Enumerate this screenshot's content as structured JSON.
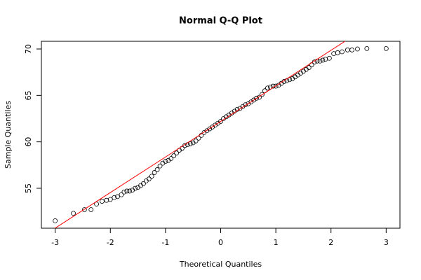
{
  "chart_data": {
    "type": "scatter",
    "title": "Normal Q-Q Plot",
    "x_label": "Theoretical Quantiles",
    "y_label": "Sample Quantiles",
    "xlim": [
      -3.25,
      3.25
    ],
    "ylim": [
      50.7,
      70.83
    ],
    "xticks": [
      -3,
      -2,
      -1,
      0,
      1,
      2,
      3
    ],
    "yticks": [
      55,
      60,
      65,
      70
    ],
    "color": "#000000",
    "x": [
      -3.0,
      -2.67,
      -2.47,
      -2.35,
      -2.25,
      -2.15,
      -2.07,
      -2.0,
      -1.93,
      -1.87,
      -1.8,
      -1.75,
      -1.7,
      -1.65,
      -1.6,
      -1.55,
      -1.5,
      -1.45,
      -1.4,
      -1.35,
      -1.3,
      -1.25,
      -1.2,
      -1.15,
      -1.1,
      -1.05,
      -1.0,
      -0.95,
      -0.9,
      -0.85,
      -0.8,
      -0.75,
      -0.7,
      -0.65,
      -0.6,
      -0.55,
      -0.5,
      -0.45,
      -0.4,
      -0.35,
      -0.3,
      -0.25,
      -0.2,
      -0.15,
      -0.1,
      -0.05,
      0,
      0.05,
      0.1,
      0.15,
      0.2,
      0.25,
      0.3,
      0.35,
      0.4,
      0.45,
      0.5,
      0.55,
      0.6,
      0.65,
      0.7,
      0.75,
      0.8,
      0.85,
      0.9,
      0.95,
      1.0,
      1.05,
      1.1,
      1.15,
      1.2,
      1.25,
      1.3,
      1.35,
      1.4,
      1.45,
      1.5,
      1.55,
      1.6,
      1.65,
      1.7,
      1.75,
      1.8,
      1.85,
      1.9,
      1.97,
      2.05,
      2.12,
      2.2,
      2.3,
      2.38,
      2.48,
      2.65,
      3.0
    ],
    "y": [
      51.5,
      52.3,
      52.7,
      52.7,
      53.3,
      53.6,
      53.7,
      53.8,
      54.0,
      54.1,
      54.3,
      54.6,
      54.7,
      54.7,
      54.8,
      55.0,
      55.1,
      55.3,
      55.5,
      55.8,
      56.0,
      56.3,
      56.7,
      57.0,
      57.4,
      57.7,
      57.9,
      58.0,
      58.2,
      58.5,
      58.8,
      59.1,
      59.3,
      59.6,
      59.7,
      59.8,
      59.9,
      60.1,
      60.4,
      60.7,
      61.0,
      61.2,
      61.4,
      61.6,
      61.8,
      62.0,
      62.2,
      62.5,
      62.7,
      62.9,
      63.1,
      63.3,
      63.5,
      63.6,
      63.8,
      64.0,
      64.1,
      64.3,
      64.5,
      64.7,
      64.8,
      65.1,
      65.5,
      65.8,
      65.9,
      66.0,
      66.0,
      66.1,
      66.3,
      66.5,
      66.6,
      66.7,
      66.8,
      67.0,
      67.2,
      67.4,
      67.6,
      67.8,
      68.0,
      68.3,
      68.6,
      68.7,
      68.7,
      68.8,
      68.9,
      69.0,
      69.5,
      69.6,
      69.7,
      69.9,
      69.9,
      70.0,
      70.05,
      70.05
    ],
    "reference_line": {
      "intercept": 62.2,
      "slope": 3.83,
      "color": "#ff0000"
    }
  }
}
